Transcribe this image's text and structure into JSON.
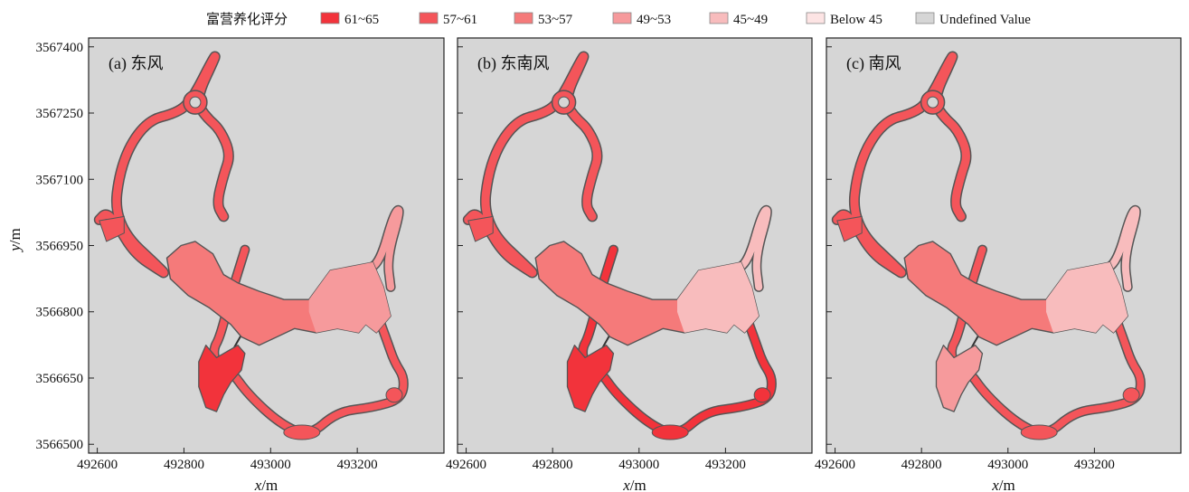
{
  "legend": {
    "title": "富营养化评分",
    "items": [
      {
        "label": "61~65",
        "color": "#f2333b"
      },
      {
        "label": "57~61",
        "color": "#f4555a"
      },
      {
        "label": "53~57",
        "color": "#f57a7a"
      },
      {
        "label": "49~53",
        "color": "#f69a9c"
      },
      {
        "label": "45~49",
        "color": "#f8bcbd"
      },
      {
        "label": "Below 45",
        "color": "#fde4e4"
      },
      {
        "label": "Undefined Value",
        "color": "#d6d6d6"
      }
    ]
  },
  "chart_data": [
    {
      "type": "heatmap",
      "panel_label": "(a) 东风",
      "xlabel_var": "x",
      "xlabel_unit": "/m",
      "ylabel_var": "y",
      "ylabel_unit": "/m",
      "x_ticks": [
        492600,
        492800,
        493000,
        493200
      ],
      "y_ticks": [
        3567400,
        3567250,
        3567100,
        3566950,
        3566800,
        3566650,
        3566500
      ],
      "xlim": [
        492580,
        493400
      ],
      "ylim": [
        3566480,
        3567420
      ],
      "regions": [
        {
          "name": "northern channel",
          "class": "57~61"
        },
        {
          "name": "central lake",
          "class": "53~57"
        },
        {
          "name": "eastern bay",
          "class": "49~53"
        },
        {
          "name": "south-western bay",
          "class": "61~65"
        },
        {
          "name": "southern channel",
          "class": "57~61"
        }
      ]
    },
    {
      "type": "heatmap",
      "panel_label": "(b) 东南风",
      "xlabel_var": "x",
      "xlabel_unit": "/m",
      "x_ticks": [
        492600,
        492800,
        493000,
        493200
      ],
      "y_ticks": [
        3567400,
        3567250,
        3567100,
        3566950,
        3566800,
        3566650,
        3566500
      ],
      "xlim": [
        492580,
        493400
      ],
      "ylim": [
        3566480,
        3567420
      ],
      "regions": [
        {
          "name": "northern channel",
          "class": "57~61"
        },
        {
          "name": "central lake",
          "class": "53~57"
        },
        {
          "name": "eastern bay",
          "class": "45~49"
        },
        {
          "name": "south-western bay",
          "class": "61~65"
        },
        {
          "name": "southern channel",
          "class": "61~65"
        }
      ]
    },
    {
      "type": "heatmap",
      "panel_label": "(c) 南风",
      "xlabel_var": "x",
      "xlabel_unit": "/m",
      "x_ticks": [
        492600,
        492800,
        493000,
        493200
      ],
      "y_ticks": [
        3567400,
        3567250,
        3567100,
        3566950,
        3566800,
        3566650,
        3566500
      ],
      "xlim": [
        492580,
        493400
      ],
      "ylim": [
        3566480,
        3567420
      ],
      "regions": [
        {
          "name": "northern channel",
          "class": "57~61"
        },
        {
          "name": "central lake",
          "class": "53~57"
        },
        {
          "name": "eastern bay",
          "class": "45~49"
        },
        {
          "name": "south-western bay",
          "class": "49~53"
        },
        {
          "name": "southern channel",
          "class": "57~61"
        }
      ]
    }
  ]
}
